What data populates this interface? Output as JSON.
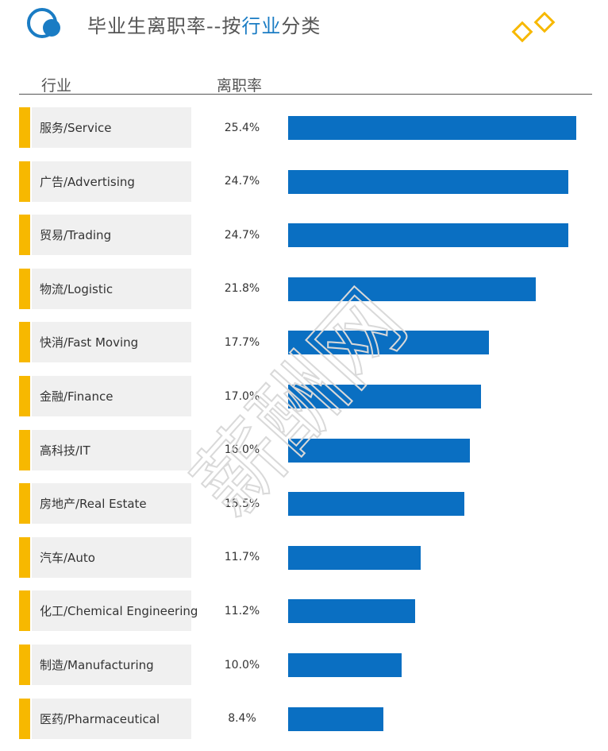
{
  "header": {
    "title_main": "毕业生离职率--按",
    "title_highlight": "行业",
    "title_tail": "分类",
    "col_industry": "行业",
    "col_rate": "离职率"
  },
  "colors": {
    "accent": "#f7b800",
    "bar": "#0a6fc2",
    "brand": "#1a7cc4"
  },
  "watermark": "薪酬网",
  "chart_data": {
    "type": "bar",
    "orientation": "horizontal",
    "title": "毕业生离职率--按行业分类",
    "xlabel": "离职率",
    "ylabel": "行业",
    "xlim": [
      0,
      25.4
    ],
    "categories": [
      "服务/Service",
      "广告/Advertising",
      "贸易/Trading",
      "物流/Logistic",
      "快消/Fast Moving",
      "金融/Finance",
      "高科技/IT",
      "房地产/Real Estate",
      "汽车/Auto",
      "化工/Chemical Engineering",
      "制造/Manufacturing",
      "医药/Pharmaceutical"
    ],
    "values": [
      25.4,
      24.7,
      24.7,
      21.8,
      17.7,
      17.0,
      16.0,
      15.5,
      11.7,
      11.2,
      10.0,
      8.4
    ],
    "value_labels": [
      "25.4%",
      "24.7%",
      "24.7%",
      "21.8%",
      "17.7%",
      "17.0%",
      "16.0%",
      "15.5%",
      "11.7%",
      "11.2%",
      "10.0%",
      "8.4%"
    ]
  }
}
